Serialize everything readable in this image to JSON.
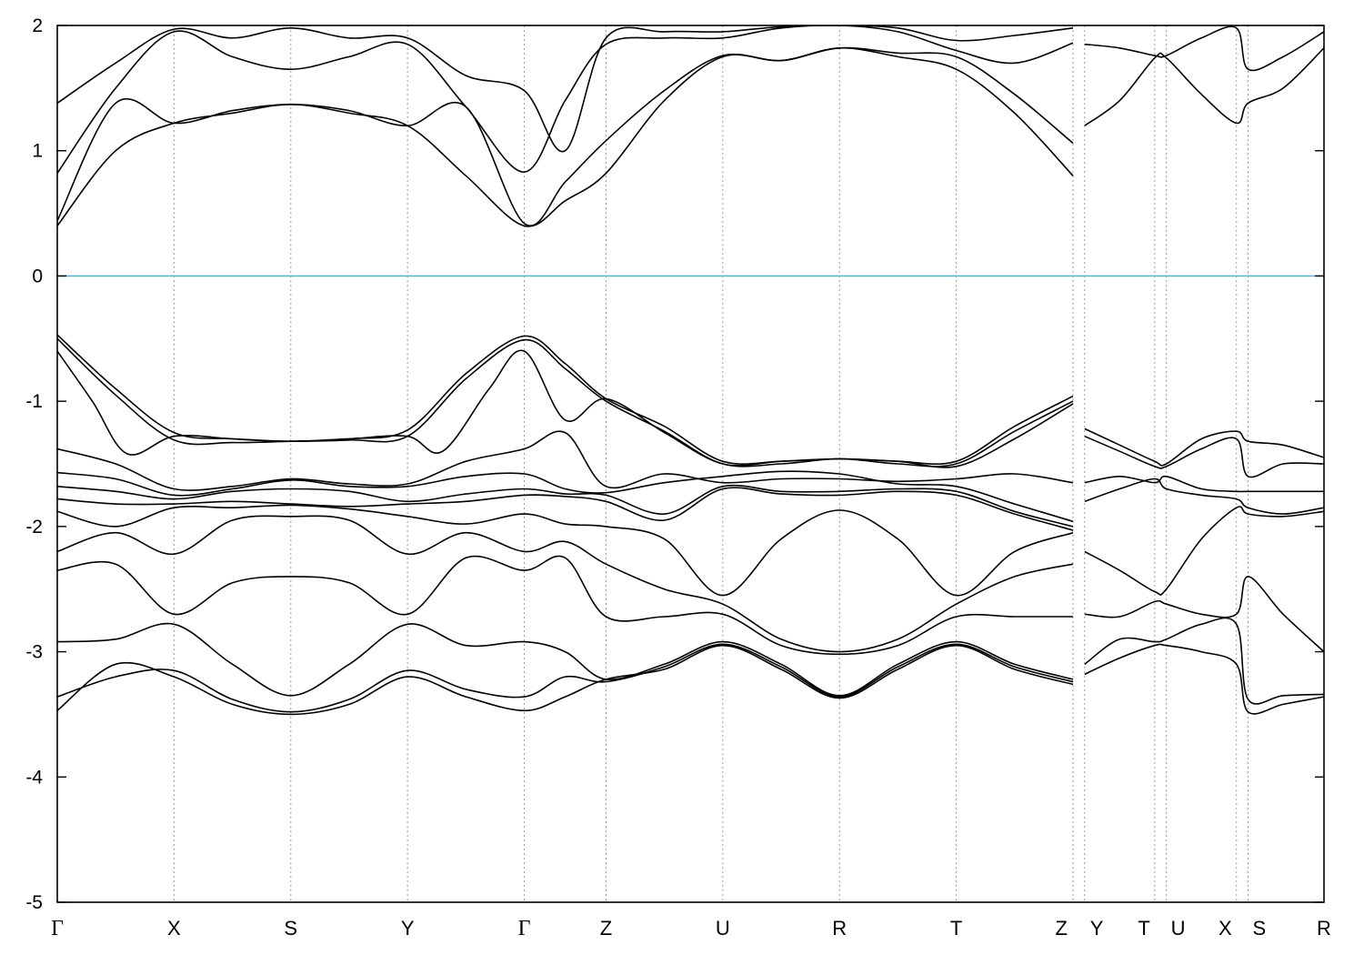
{
  "chart_data": {
    "type": "line",
    "title": "",
    "xlabel": "",
    "ylabel": "",
    "ylim": [
      -5,
      2
    ],
    "yticks": [
      2,
      1,
      0,
      -1,
      -2,
      -3,
      -4,
      -5
    ],
    "ytick_labels": [
      "2",
      "1",
      "0",
      "-1",
      "-2",
      "-3",
      "-4",
      "-5"
    ],
    "xlim": [
      0,
      10.85
    ],
    "high_symmetry_points": [
      {
        "label": "Γ",
        "x": 0
      },
      {
        "label": "X",
        "x": 1.0
      },
      {
        "label": "S",
        "x": 2.0
      },
      {
        "label": "Y",
        "x": 3.0
      },
      {
        "label": "Γ",
        "x": 4.0
      },
      {
        "label": "Z",
        "x": 4.7
      },
      {
        "label": "U",
        "x": 5.7
      },
      {
        "label": "R",
        "x": 6.7
      },
      {
        "label": "T",
        "x": 7.7
      },
      {
        "label": "Z",
        "x": 8.7
      },
      {
        "label": "Y",
        "x": 8.8
      },
      {
        "label": "T",
        "x": 9.4
      },
      {
        "label": "U",
        "x": 9.5
      },
      {
        "label": "X",
        "x": 10.1
      },
      {
        "label": "S",
        "x": 10.2
      },
      {
        "label": "R",
        "x": 10.85
      }
    ],
    "grid": "dotted vertical lines at high-symmetry points",
    "fermi_level": {
      "y": 0,
      "color": "#5fb4c9"
    },
    "band_color": "#000000",
    "bands": [
      {
        "x": [
          0,
          0.5,
          1.0,
          1.5,
          2.0,
          2.5,
          3.0,
          3.5,
          4.0,
          4.35,
          4.7,
          5.2,
          5.7,
          6.2,
          6.7,
          7.2,
          7.7,
          8.2,
          8.7
        ],
        "y": [
          0.4,
          1.0,
          1.22,
          1.3,
          1.37,
          1.3,
          1.2,
          0.8,
          0.4,
          0.6,
          0.82,
          1.4,
          1.75,
          1.72,
          1.82,
          1.75,
          1.65,
          1.3,
          0.8
        ]
      },
      {
        "x": [
          0,
          0.5,
          1.0,
          1.5,
          2.0,
          2.5,
          3.0,
          3.5,
          4.0,
          4.35,
          4.7,
          5.2,
          5.7,
          6.2,
          6.7,
          7.2,
          7.7,
          8.2,
          8.7
        ],
        "y": [
          0.44,
          1.38,
          1.22,
          1.32,
          1.37,
          1.32,
          1.2,
          1.35,
          0.42,
          0.75,
          1.08,
          1.48,
          1.76,
          1.72,
          1.82,
          1.78,
          1.75,
          1.45,
          1.06
        ]
      },
      {
        "x": [
          0,
          0.5,
          1.0,
          1.5,
          2.0,
          2.5,
          3.0,
          3.5,
          4.0,
          4.35,
          4.7,
          5.2,
          5.7,
          6.2,
          6.7,
          7.2,
          7.7,
          8.2,
          8.7
        ],
        "y": [
          0.82,
          1.5,
          1.95,
          1.75,
          1.65,
          1.75,
          1.85,
          1.35,
          0.83,
          1.4,
          1.85,
          1.9,
          1.9,
          1.98,
          2.0,
          1.95,
          1.8,
          1.7,
          1.86
        ]
      },
      {
        "x": [
          0,
          0.5,
          1.0,
          1.5,
          2.0,
          2.5,
          3.0,
          3.5,
          4.0,
          4.35,
          4.7,
          5.2,
          5.7,
          6.2,
          6.7,
          7.2,
          7.7,
          8.2,
          8.7
        ],
        "y": [
          1.38,
          1.7,
          1.97,
          1.9,
          1.98,
          1.9,
          1.9,
          1.6,
          1.48,
          1.0,
          1.9,
          1.95,
          1.95,
          1.99,
          2.0,
          1.98,
          1.88,
          1.92,
          1.98
        ]
      },
      {
        "x": [
          8.8,
          9.1,
          9.4,
          9.5,
          9.8,
          10.1,
          10.2,
          10.5,
          10.85
        ],
        "y": [
          1.2,
          1.4,
          1.74,
          1.74,
          1.45,
          1.22,
          1.38,
          1.5,
          1.82
        ]
      },
      {
        "x": [
          8.8,
          9.1,
          9.4,
          9.5,
          9.8,
          10.1,
          10.2,
          10.5,
          10.85
        ],
        "y": [
          1.85,
          1.82,
          1.76,
          1.76,
          1.9,
          1.98,
          1.65,
          1.75,
          1.95
        ]
      },
      {
        "x": [
          0,
          0.5,
          1.0,
          1.5,
          2.0,
          2.5,
          3.0,
          3.5,
          4.0,
          4.35,
          4.7,
          5.2,
          5.7,
          6.2,
          6.7,
          7.2,
          7.7,
          8.2,
          8.7
        ],
        "y": [
          -0.47,
          -0.9,
          -1.25,
          -1.3,
          -1.32,
          -1.3,
          -1.23,
          -0.78,
          -0.48,
          -0.7,
          -0.98,
          -1.2,
          -1.48,
          -1.48,
          -1.46,
          -1.48,
          -1.48,
          -1.2,
          -0.96
        ]
      },
      {
        "x": [
          0,
          0.5,
          1.0,
          1.5,
          2.0,
          2.5,
          3.0,
          3.5,
          4.0,
          4.35,
          4.7,
          5.2,
          5.7,
          6.2,
          6.7,
          7.2,
          7.7,
          8.2,
          8.7
        ],
        "y": [
          -0.5,
          -0.95,
          -1.31,
          -1.33,
          -1.32,
          -1.31,
          -1.28,
          -0.82,
          -0.51,
          -0.74,
          -1.0,
          -1.24,
          -1.5,
          -1.5,
          -1.46,
          -1.5,
          -1.5,
          -1.24,
          -1.0
        ]
      },
      {
        "x": [
          0,
          0.3,
          0.6,
          1.0,
          1.5,
          2.0,
          2.5,
          3.0,
          3.3,
          3.7,
          4.0,
          4.35,
          4.7,
          5.2,
          5.7,
          6.2,
          6.7,
          7.2,
          7.7,
          8.2,
          8.7
        ],
        "y": [
          -0.6,
          -1.0,
          -1.42,
          -1.28,
          -1.3,
          -1.32,
          -1.3,
          -1.28,
          -1.4,
          -0.9,
          -0.6,
          -1.15,
          -0.98,
          -1.25,
          -1.5,
          -1.48,
          -1.46,
          -1.48,
          -1.52,
          -1.3,
          -1.02
        ]
      },
      {
        "x": [
          0,
          0.5,
          1.0,
          1.5,
          2.0,
          2.5,
          3.0,
          3.5,
          4.0,
          4.35,
          4.7,
          5.2,
          5.7,
          6.2,
          6.7,
          7.2,
          7.7,
          8.2,
          8.7
        ],
        "y": [
          -1.38,
          -1.5,
          -1.7,
          -1.68,
          -1.62,
          -1.66,
          -1.66,
          -1.48,
          -1.38,
          -1.25,
          -1.68,
          -1.58,
          -1.65,
          -1.62,
          -1.62,
          -1.64,
          -1.62,
          -1.58,
          -1.65
        ]
      },
      {
        "x": [
          0,
          0.5,
          1.0,
          1.5,
          2.0,
          2.5,
          3.0,
          3.5,
          4.0,
          4.35,
          4.7,
          5.2,
          5.7,
          6.2,
          6.7,
          7.2,
          7.7,
          8.2,
          8.7
        ],
        "y": [
          -1.57,
          -1.62,
          -1.75,
          -1.7,
          -1.63,
          -1.68,
          -1.68,
          -1.6,
          -1.58,
          -1.7,
          -1.73,
          -1.65,
          -1.6,
          -1.56,
          -1.58,
          -1.66,
          -1.68,
          -1.82,
          -1.96
        ]
      },
      {
        "x": [
          0,
          0.5,
          1.0,
          1.5,
          2.0,
          2.5,
          3.0,
          3.5,
          4.0,
          4.35,
          4.7,
          5.2,
          5.7,
          6.2,
          6.7,
          7.2,
          7.7,
          8.2,
          8.7
        ],
        "y": [
          -1.68,
          -1.72,
          -1.78,
          -1.72,
          -1.7,
          -1.72,
          -1.8,
          -1.74,
          -1.7,
          -1.74,
          -1.75,
          -1.9,
          -1.68,
          -1.72,
          -1.72,
          -1.7,
          -1.72,
          -1.88,
          -2.0
        ]
      },
      {
        "x": [
          0,
          0.5,
          1.0,
          1.5,
          2.0,
          2.5,
          3.0,
          3.5,
          4.0,
          4.35,
          4.7,
          5.2,
          5.7,
          6.2,
          6.7,
          7.2,
          7.7,
          8.2,
          8.7
        ],
        "y": [
          -1.78,
          -1.82,
          -1.82,
          -1.8,
          -1.82,
          -1.84,
          -1.82,
          -1.8,
          -1.75,
          -1.76,
          -1.8,
          -1.95,
          -1.7,
          -1.74,
          -1.75,
          -1.72,
          -1.75,
          -1.9,
          -2.03
        ]
      },
      {
        "x": [
          0,
          0.5,
          1.0,
          1.5,
          2.0,
          2.5,
          3.0,
          3.5,
          4.0,
          4.35,
          4.7,
          5.2,
          5.7,
          6.2,
          6.7,
          7.2,
          7.7,
          8.2,
          8.7
        ],
        "y": [
          -1.88,
          -2.0,
          -1.85,
          -1.85,
          -1.83,
          -1.86,
          -1.92,
          -1.98,
          -1.9,
          -1.98,
          -2.0,
          -2.1,
          -2.55,
          -2.1,
          -1.87,
          -2.1,
          -2.55,
          -2.2,
          -2.05
        ]
      },
      {
        "x": [
          0,
          0.5,
          1.0,
          1.5,
          2.0,
          2.5,
          3.0,
          3.5,
          4.0,
          4.35,
          4.7,
          5.2,
          5.7,
          6.2,
          6.7,
          7.2,
          7.7,
          8.2,
          8.7
        ],
        "y": [
          -2.2,
          -2.05,
          -2.22,
          -1.95,
          -1.92,
          -1.95,
          -2.22,
          -2.05,
          -2.2,
          -2.12,
          -2.3,
          -2.5,
          -2.62,
          -2.9,
          -3.0,
          -2.9,
          -2.62,
          -2.4,
          -2.3
        ]
      },
      {
        "x": [
          0,
          0.5,
          1.0,
          1.5,
          2.0,
          2.5,
          3.0,
          3.5,
          4.0,
          4.35,
          4.7,
          5.2,
          5.7,
          6.2,
          6.7,
          7.2,
          7.7,
          8.2,
          8.7
        ],
        "y": [
          -2.35,
          -2.3,
          -2.7,
          -2.45,
          -2.4,
          -2.45,
          -2.7,
          -2.25,
          -2.35,
          -2.25,
          -2.72,
          -2.72,
          -2.7,
          -2.95,
          -3.02,
          -2.95,
          -2.72,
          -2.72,
          -2.72
        ]
      },
      {
        "x": [
          0,
          0.5,
          1.0,
          1.5,
          2.0,
          2.5,
          3.0,
          3.5,
          4.0,
          4.35,
          4.7,
          5.2,
          5.7,
          6.2,
          6.7,
          7.2,
          7.7,
          8.2,
          8.7
        ],
        "y": [
          -2.92,
          -2.9,
          -2.78,
          -3.1,
          -3.35,
          -3.1,
          -2.78,
          -2.95,
          -2.92,
          -3.0,
          -3.22,
          -3.1,
          -2.92,
          -3.1,
          -3.35,
          -3.1,
          -2.92,
          -3.1,
          -3.22
        ]
      },
      {
        "x": [
          0,
          0.5,
          1.0,
          1.5,
          2.0,
          2.5,
          3.0,
          3.5,
          4.0,
          4.35,
          4.7,
          5.2,
          5.7,
          6.2,
          6.7,
          7.2,
          7.7,
          8.2,
          8.7
        ],
        "y": [
          -3.36,
          -3.2,
          -3.15,
          -3.38,
          -3.48,
          -3.38,
          -3.15,
          -3.3,
          -3.36,
          -3.2,
          -3.24,
          -3.12,
          -2.94,
          -3.12,
          -3.36,
          -3.12,
          -2.94,
          -3.12,
          -3.24
        ]
      },
      {
        "x": [
          0,
          0.5,
          1.0,
          1.5,
          2.0,
          2.5,
          3.0,
          3.5,
          4.0,
          4.35,
          4.7,
          5.2,
          5.7,
          6.2,
          6.7,
          7.2,
          7.7,
          8.2,
          8.7
        ],
        "y": [
          -3.47,
          -3.1,
          -3.2,
          -3.42,
          -3.5,
          -3.42,
          -3.2,
          -3.36,
          -3.47,
          -3.36,
          -3.22,
          -3.14,
          -2.95,
          -3.14,
          -3.37,
          -3.14,
          -2.95,
          -3.14,
          -3.26
        ]
      },
      {
        "x": [
          8.8,
          9.1,
          9.4,
          9.5,
          9.8,
          10.1,
          10.2,
          10.5,
          10.85
        ],
        "y": [
          -1.22,
          -1.35,
          -1.48,
          -1.5,
          -1.3,
          -1.24,
          -1.32,
          -1.35,
          -1.45
        ]
      },
      {
        "x": [
          8.8,
          9.1,
          9.4,
          9.5,
          9.8,
          10.1,
          10.2,
          10.5,
          10.85
        ],
        "y": [
          -1.28,
          -1.4,
          -1.52,
          -1.52,
          -1.38,
          -1.3,
          -1.6,
          -1.5,
          -1.5
        ]
      },
      {
        "x": [
          8.8,
          9.1,
          9.4,
          9.5,
          9.8,
          10.1,
          10.2,
          10.5,
          10.85
        ],
        "y": [
          -1.65,
          -1.6,
          -1.65,
          -1.6,
          -1.7,
          -1.72,
          -1.72,
          -1.72,
          -1.72
        ]
      },
      {
        "x": [
          8.8,
          9.1,
          9.4,
          9.5,
          9.8,
          10.1,
          10.2,
          10.5,
          10.85
        ],
        "y": [
          -1.8,
          -1.7,
          -1.62,
          -1.7,
          -1.75,
          -1.78,
          -1.85,
          -1.9,
          -1.85
        ]
      },
      {
        "x": [
          8.8,
          9.1,
          9.4,
          9.5,
          9.8,
          10.1,
          10.2,
          10.5,
          10.85
        ],
        "y": [
          -2.2,
          -2.35,
          -2.52,
          -2.5,
          -2.1,
          -1.85,
          -1.9,
          -1.92,
          -1.88
        ]
      },
      {
        "x": [
          8.8,
          9.1,
          9.4,
          9.5,
          9.8,
          10.1,
          10.2,
          10.5,
          10.85
        ],
        "y": [
          -2.7,
          -2.72,
          -2.6,
          -2.62,
          -2.7,
          -2.7,
          -2.4,
          -2.7,
          -3.0
        ]
      },
      {
        "x": [
          8.8,
          9.1,
          9.4,
          9.5,
          9.8,
          10.1,
          10.2,
          10.5,
          10.85
        ],
        "y": [
          -3.1,
          -2.9,
          -2.92,
          -2.9,
          -2.78,
          -2.78,
          -3.38,
          -3.35,
          -3.34
        ]
      },
      {
        "x": [
          8.8,
          9.1,
          9.4,
          9.5,
          9.8,
          10.1,
          10.2,
          10.5,
          10.85
        ],
        "y": [
          -3.18,
          -3.05,
          -2.95,
          -2.95,
          -3.0,
          -3.1,
          -3.48,
          -3.42,
          -3.36
        ]
      }
    ]
  }
}
